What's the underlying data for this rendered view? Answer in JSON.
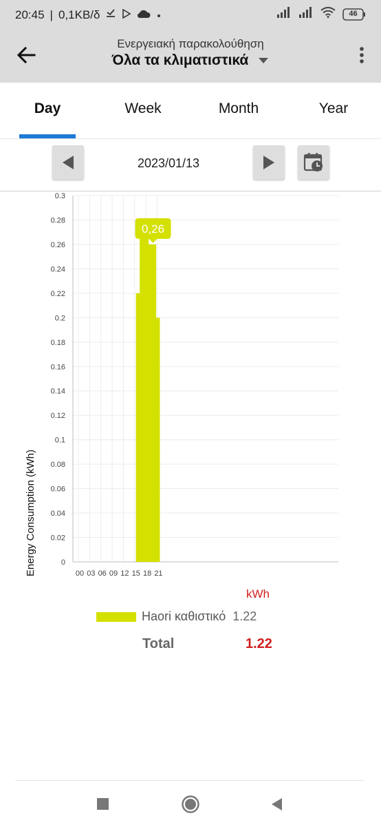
{
  "status_bar": {
    "time": "20:45",
    "speed": "0,1KB/δ",
    "battery": "46"
  },
  "header": {
    "subtitle": "Ενεργειακή παρακολούθηση",
    "title": "Όλα τα κλιματιστικά"
  },
  "tabs": [
    {
      "label": "Day",
      "active": true
    },
    {
      "label": "Week",
      "active": false
    },
    {
      "label": "Month",
      "active": false
    },
    {
      "label": "Year",
      "active": false
    }
  ],
  "date_nav": {
    "date": "2023/01/13"
  },
  "chart_data": {
    "type": "bar",
    "ylabel": "Energy Consumption (kWh)",
    "xlabel": "",
    "unit_label": "kWh",
    "ylim": [
      0,
      0.3
    ],
    "yticks": [
      "0",
      "0.02",
      "0.04",
      "0.06",
      "0.08",
      "0.1",
      "0.12",
      "0.14",
      "0.16",
      "0.18",
      "0.2",
      "0.22",
      "0.24",
      "0.26",
      "0.28",
      "0.3"
    ],
    "xticks": [
      "00",
      "03",
      "06",
      "09",
      "12",
      "15",
      "18",
      "21"
    ],
    "x_hours": [
      16,
      17,
      18,
      19,
      20
    ],
    "values": [
      0.22,
      0.28,
      0.26,
      0.26,
      0.2
    ],
    "tooltip": {
      "hour": 19,
      "label": "0,26"
    },
    "bar_color": "#d4e000",
    "grid": true
  },
  "legend": {
    "name": "Haori καθιστικό",
    "value": "1.22"
  },
  "total": {
    "label": "Total",
    "value": "1.22"
  }
}
